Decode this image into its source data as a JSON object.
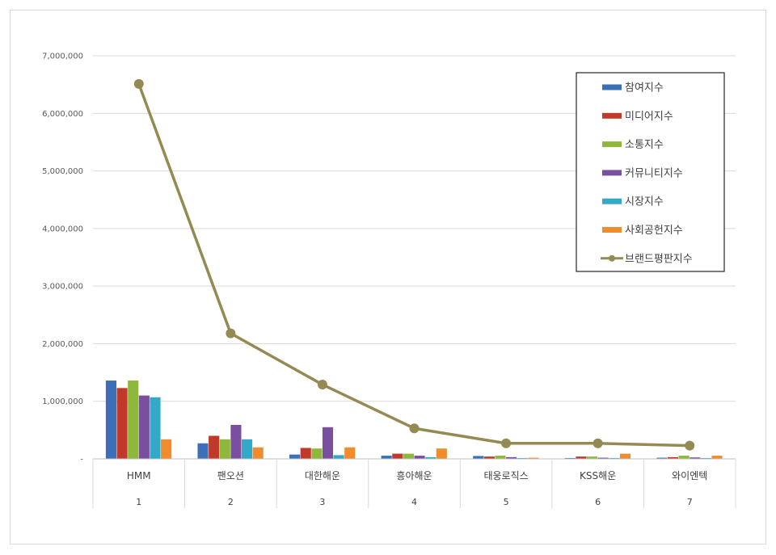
{
  "chart_data": {
    "type": "bar",
    "title": "",
    "xlabel": "",
    "ylabel": "",
    "ylim": [
      0,
      7000000
    ],
    "yticks": [
      "-",
      "1,000,000",
      "2,000,000",
      "3,000,000",
      "4,000,000",
      "5,000,000",
      "6,000,000",
      "7,000,000"
    ],
    "ytick_values": [
      0,
      1000000,
      2000000,
      3000000,
      4000000,
      5000000,
      6000000,
      7000000
    ],
    "grid": true,
    "legend_position": "top-right",
    "categories": [
      "HMM",
      "팬오션",
      "대한해운",
      "흥아해운",
      "태웅로직스",
      "KSS해운",
      "와이엔텍"
    ],
    "ranks": [
      "1",
      "2",
      "3",
      "4",
      "5",
      "6",
      "7"
    ],
    "series": [
      {
        "name": "참여지수",
        "kind": "bar",
        "color": "#3b6fb6",
        "values": [
          1360000,
          270000,
          75000,
          55000,
          50000,
          15000,
          20000
        ]
      },
      {
        "name": "미디어지수",
        "kind": "bar",
        "color": "#c0392b",
        "values": [
          1230000,
          400000,
          190000,
          90000,
          40000,
          40000,
          30000
        ]
      },
      {
        "name": "소통지수",
        "kind": "bar",
        "color": "#8db83b",
        "values": [
          1360000,
          340000,
          180000,
          90000,
          55000,
          40000,
          55000
        ]
      },
      {
        "name": "커뮤니티지수",
        "kind": "bar",
        "color": "#7b4fa0",
        "values": [
          1100000,
          590000,
          550000,
          55000,
          30000,
          20000,
          25000
        ]
      },
      {
        "name": "시장지수",
        "kind": "bar",
        "color": "#31a9c7",
        "values": [
          1070000,
          340000,
          65000,
          30000,
          15000,
          15000,
          15000
        ]
      },
      {
        "name": "사회공헌지수",
        "kind": "bar",
        "color": "#f08c2e",
        "values": [
          340000,
          200000,
          200000,
          180000,
          20000,
          90000,
          55000
        ]
      },
      {
        "name": "브랜드평판지수",
        "kind": "line",
        "color": "#948a54",
        "values": [
          6510000,
          2180000,
          1290000,
          530000,
          270000,
          270000,
          230000
        ]
      }
    ]
  }
}
